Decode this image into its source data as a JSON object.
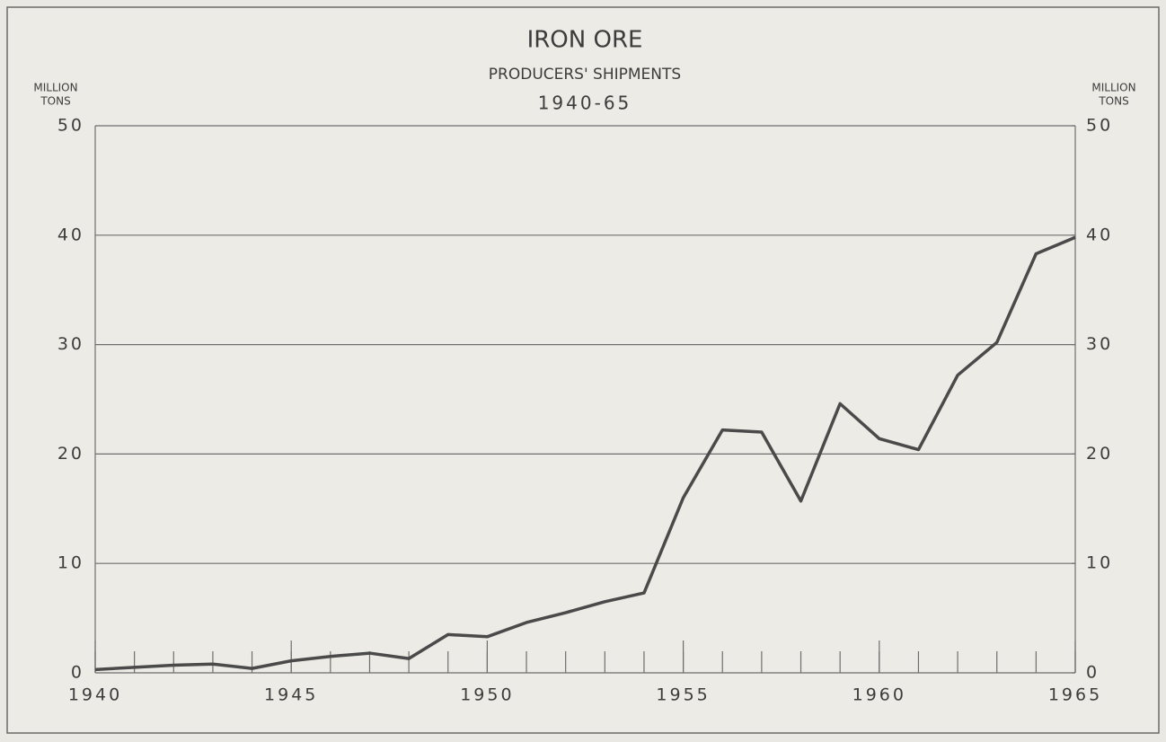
{
  "chart_data": {
    "type": "line",
    "title": "IRON ORE",
    "subtitle": [
      "PRODUCERS' SHIPMENTS",
      "1940-65"
    ],
    "y_label": [
      "MILLION",
      "TONS"
    ],
    "y2_label": [
      "MILLION",
      "TONS"
    ],
    "x": [
      1940,
      1941,
      1942,
      1943,
      1944,
      1945,
      1946,
      1947,
      1948,
      1949,
      1950,
      1951,
      1952,
      1953,
      1954,
      1955,
      1956,
      1957,
      1958,
      1959,
      1960,
      1961,
      1962,
      1963,
      1964,
      1965
    ],
    "series": [
      {
        "name": "Producers' shipments",
        "color": "#4a4a4a",
        "values": [
          0.3,
          0.5,
          0.7,
          0.8,
          0.4,
          1.1,
          1.5,
          1.8,
          1.3,
          3.5,
          3.3,
          4.6,
          5.5,
          6.5,
          7.3,
          16.0,
          22.2,
          22.0,
          15.7,
          24.6,
          21.4,
          20.4,
          27.2,
          30.2,
          38.3,
          39.8
        ]
      }
    ],
    "xlim": [
      1940,
      1965
    ],
    "xticks": [
      1940,
      1945,
      1950,
      1955,
      1960,
      1965
    ],
    "ylim": [
      0,
      50
    ],
    "yticks": [
      0,
      10,
      20,
      30,
      40,
      50
    ],
    "y2lim": [
      0,
      50
    ],
    "y2ticks": [
      0,
      10,
      20,
      30,
      40,
      50
    ],
    "grid": true
  }
}
